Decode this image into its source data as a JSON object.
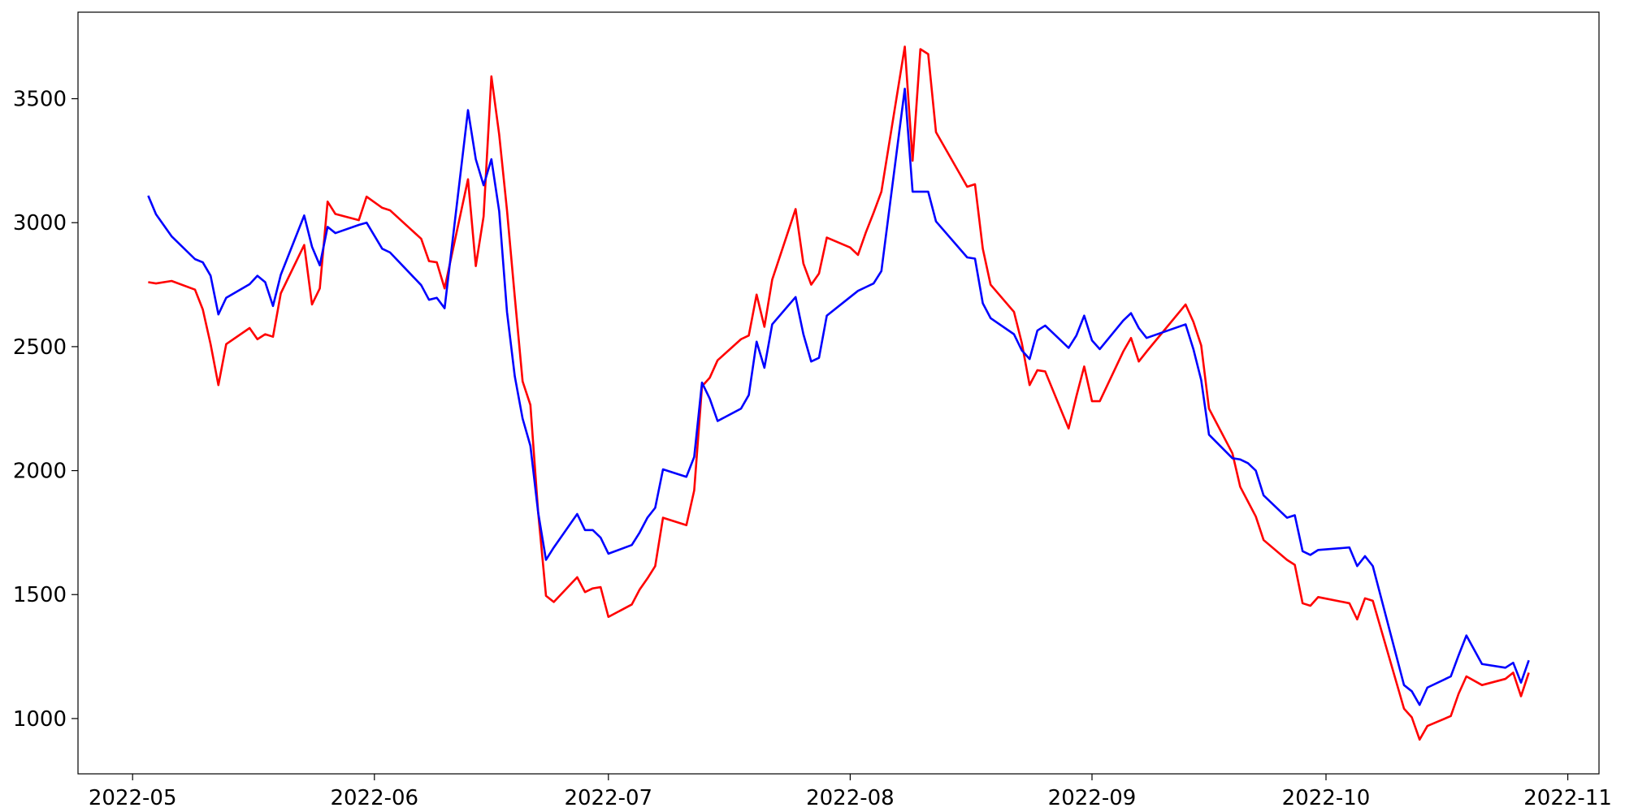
{
  "chart_data": {
    "type": "line",
    "x": [
      "2022-05-03",
      "2022-05-04",
      "2022-05-06",
      "2022-05-09",
      "2022-05-10",
      "2022-05-11",
      "2022-05-12",
      "2022-05-13",
      "2022-05-16",
      "2022-05-17",
      "2022-05-18",
      "2022-05-19",
      "2022-05-20",
      "2022-05-23",
      "2022-05-24",
      "2022-05-25",
      "2022-05-26",
      "2022-05-27",
      "2022-05-30",
      "2022-05-31",
      "2022-06-02",
      "2022-06-03",
      "2022-06-07",
      "2022-06-08",
      "2022-06-09",
      "2022-06-10",
      "2022-06-13",
      "2022-06-14",
      "2022-06-15",
      "2022-06-16",
      "2022-06-17",
      "2022-06-18",
      "2022-06-19",
      "2022-06-20",
      "2022-06-21",
      "2022-06-22",
      "2022-06-23",
      "2022-06-24",
      "2022-06-27",
      "2022-06-28",
      "2022-06-29",
      "2022-06-30",
      "2022-07-01",
      "2022-07-04",
      "2022-07-05",
      "2022-07-06",
      "2022-07-07",
      "2022-07-08",
      "2022-07-11",
      "2022-07-12",
      "2022-07-13",
      "2022-07-14",
      "2022-07-15",
      "2022-07-18",
      "2022-07-19",
      "2022-07-20",
      "2022-07-21",
      "2022-07-22",
      "2022-07-25",
      "2022-07-26",
      "2022-07-27",
      "2022-07-28",
      "2022-07-29",
      "2022-08-01",
      "2022-08-02",
      "2022-08-03",
      "2022-08-04",
      "2022-08-05",
      "2022-08-08",
      "2022-08-09",
      "2022-08-10",
      "2022-08-11",
      "2022-08-12",
      "2022-08-16",
      "2022-08-17",
      "2022-08-18",
      "2022-08-19",
      "2022-08-22",
      "2022-08-23",
      "2022-08-24",
      "2022-08-25",
      "2022-08-26",
      "2022-08-29",
      "2022-08-30",
      "2022-08-31",
      "2022-09-01",
      "2022-09-02",
      "2022-09-05",
      "2022-09-06",
      "2022-09-07",
      "2022-09-08",
      "2022-09-13",
      "2022-09-14",
      "2022-09-15",
      "2022-09-16",
      "2022-09-19",
      "2022-09-20",
      "2022-09-21",
      "2022-09-22",
      "2022-09-23",
      "2022-09-26",
      "2022-09-27",
      "2022-09-28",
      "2022-09-29",
      "2022-09-30",
      "2022-10-04",
      "2022-10-05",
      "2022-10-06",
      "2022-10-07",
      "2022-10-11",
      "2022-10-12",
      "2022-10-13",
      "2022-10-14",
      "2022-10-17",
      "2022-10-18",
      "2022-10-19",
      "2022-10-21",
      "2022-10-24",
      "2022-10-25",
      "2022-10-26",
      "2022-10-27"
    ],
    "series": [
      {
        "color": "#ff0000",
        "values": [
          2760,
          2755,
          2765,
          2730,
          2650,
          2510,
          2345,
          2510,
          2575,
          2530,
          2550,
          2540,
          2715,
          2910,
          2670,
          2735,
          3085,
          3035,
          3010,
          3105,
          3060,
          3050,
          2935,
          2845,
          2840,
          2735,
          3175,
          2825,
          3025,
          3590,
          3355,
          3050,
          2700,
          2360,
          2265,
          1830,
          1495,
          1470,
          1570,
          1510,
          1525,
          1530,
          1410,
          1460,
          1520,
          1565,
          1615,
          1810,
          1780,
          1920,
          2340,
          2375,
          2445,
          2530,
          2545,
          2710,
          2580,
          2770,
          3055,
          2835,
          2750,
          2795,
          2940,
          2900,
          2870,
          2960,
          3040,
          3125,
          3710,
          3250,
          3700,
          3680,
          3365,
          3145,
          3155,
          2895,
          2750,
          2640,
          2515,
          2345,
          2405,
          2400,
          2170,
          2300,
          2420,
          2280,
          2280,
          2480,
          2535,
          2440,
          2480,
          2670,
          2600,
          2505,
          2250,
          2070,
          1935,
          1875,
          1815,
          1720,
          1640,
          1620,
          1465,
          1455,
          1490,
          1465,
          1400,
          1485,
          1475,
          1040,
          1005,
          915,
          970,
          1010,
          1100,
          1170,
          1135,
          1160,
          1185,
          1090,
          1185
        ]
      },
      {
        "color": "#0000ff",
        "values": [
          3109,
          3034,
          2945,
          2853,
          2840,
          2786,
          2630,
          2697,
          2752,
          2786,
          2760,
          2664,
          2790,
          3029,
          2903,
          2828,
          2983,
          2958,
          2991,
          3000,
          2895,
          2880,
          2748,
          2689,
          2697,
          2655,
          3454,
          3256,
          3151,
          3256,
          3046,
          2640,
          2380,
          2210,
          2100,
          1830,
          1640,
          1690,
          1825,
          1760,
          1760,
          1730,
          1665,
          1700,
          1750,
          1810,
          1850,
          2005,
          1975,
          2055,
          2355,
          2290,
          2200,
          2250,
          2305,
          2520,
          2415,
          2590,
          2700,
          2550,
          2440,
          2455,
          2625,
          2700,
          2725,
          2740,
          2755,
          2805,
          3540,
          3125,
          3125,
          3125,
          3005,
          2860,
          2855,
          2675,
          2615,
          2550,
          2485,
          2450,
          2565,
          2585,
          2495,
          2545,
          2625,
          2525,
          2490,
          2605,
          2635,
          2575,
          2535,
          2590,
          2490,
          2365,
          2145,
          2050,
          2045,
          2030,
          2000,
          1900,
          1810,
          1820,
          1675,
          1660,
          1680,
          1690,
          1615,
          1655,
          1615,
          1135,
          1110,
          1055,
          1125,
          1170,
          1255,
          1335,
          1220,
          1205,
          1225,
          1145,
          1235
        ]
      }
    ],
    "xlim": [
      "2022-04-24",
      "2022-11-05"
    ],
    "xticks": [
      {
        "value": "2022-05-01",
        "label": "2022-05"
      },
      {
        "value": "2022-06-01",
        "label": "2022-06"
      },
      {
        "value": "2022-07-01",
        "label": "2022-07"
      },
      {
        "value": "2022-08-01",
        "label": "2022-08"
      },
      {
        "value": "2022-09-01",
        "label": "2022-09"
      },
      {
        "value": "2022-10-01",
        "label": "2022-10"
      },
      {
        "value": "2022-11-01",
        "label": "2022-11"
      }
    ],
    "ylim": [
      777,
      3849
    ],
    "yticks": [
      1000,
      1500,
      2000,
      2500,
      3000,
      3500
    ],
    "grid": false
  }
}
